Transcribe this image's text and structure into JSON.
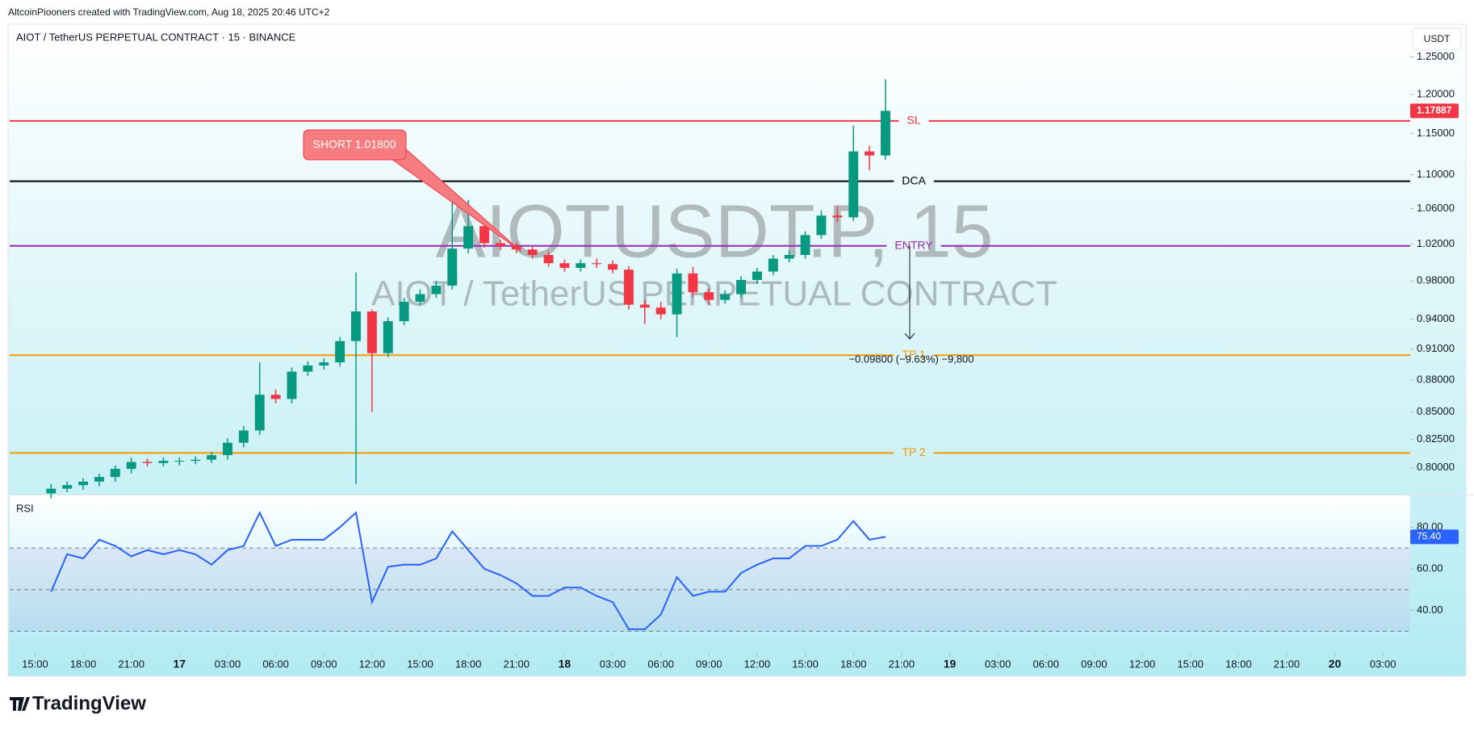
{
  "header": "AltcoinPiooners created with TradingView.com, Aug 18, 2025 20:46 UTC+2",
  "footer_logo": "TradingView",
  "chart_data": [
    {
      "type": "candlestick",
      "title": "AIOT / TetherUS PERPETUAL CONTRACT · 15 · BINANCE",
      "currency": "USDT",
      "watermark": {
        "symbol": "AIOTUSDT.P, 15",
        "description": "AIOT / TetherUS PERPETUAL CONTRACT"
      },
      "log_scale": true,
      "up_color": "#089981",
      "down_color": "#f23645",
      "xlim": [
        13.42,
        100.7
      ],
      "ylim": [
        0.777,
        1.294
      ],
      "yticks": [
        {
          "value": 1.25,
          "label": "1.25000"
        },
        {
          "value": 1.2,
          "label": "1.20000"
        },
        {
          "value": 1.15,
          "label": "1.15000"
        },
        {
          "value": 1.1,
          "label": "1.10000"
        },
        {
          "value": 1.06,
          "label": "1.06000"
        },
        {
          "value": 1.02,
          "label": "1.02000"
        },
        {
          "value": 0.98,
          "label": "0.98000"
        },
        {
          "value": 0.94,
          "label": "0.94000"
        },
        {
          "value": 0.91,
          "label": "0.91000"
        },
        {
          "value": 0.88,
          "label": "0.88000"
        },
        {
          "value": 0.85,
          "label": "0.85000"
        },
        {
          "value": 0.825,
          "label": "0.82500"
        },
        {
          "value": 0.8,
          "label": "0.80000"
        }
      ],
      "x": [
        16,
        17,
        18,
        19,
        20,
        21,
        22,
        23,
        24,
        25,
        26,
        27,
        28,
        29,
        30,
        31,
        32,
        33,
        34,
        35,
        36,
        37,
        38,
        39,
        40,
        41,
        42,
        43,
        44,
        45,
        46,
        47,
        48,
        49,
        50,
        51,
        52,
        53,
        54,
        55,
        56,
        57,
        58,
        59,
        60,
        61,
        62,
        63,
        64,
        65,
        66,
        67,
        68
      ],
      "open": [
        0.778,
        0.782,
        0.785,
        0.788,
        0.792,
        0.799,
        0.805,
        0.804,
        0.806,
        0.806,
        0.807,
        0.811,
        0.822,
        0.833,
        0.866,
        0.862,
        0.888,
        0.894,
        0.897,
        0.918,
        0.948,
        0.906,
        0.938,
        0.958,
        0.966,
        0.975,
        1.015,
        1.04,
        1.021,
        1.018,
        1.014,
        1.008,
        0.999,
        0.994,
        0.999,
        0.998,
        0.992,
        0.955,
        0.952,
        0.945,
        0.988,
        0.968,
        0.96,
        0.966,
        0.981,
        0.99,
        1.004,
        1.008,
        1.03,
        1.052,
        1.05,
        1.128,
        1.123
      ],
      "high": [
        0.786,
        0.788,
        0.791,
        0.795,
        0.802,
        0.809,
        0.808,
        0.809,
        0.809,
        0.81,
        0.814,
        0.826,
        0.837,
        0.897,
        0.871,
        0.892,
        0.898,
        0.901,
        0.922,
        0.989,
        0.95,
        0.942,
        0.962,
        0.971,
        0.98,
        1.068,
        1.07,
        1.044,
        1.025,
        1.022,
        1.018,
        1.012,
        1.003,
        1.003,
        1.004,
        1.002,
        0.996,
        0.96,
        0.958,
        0.993,
        0.995,
        0.972,
        0.97,
        0.985,
        0.994,
        1.008,
        1.013,
        1.034,
        1.058,
        1.063,
        1.16,
        1.135,
        1.22
      ],
      "low": [
        0.774,
        0.779,
        0.781,
        0.784,
        0.788,
        0.795,
        0.801,
        0.801,
        0.802,
        0.803,
        0.804,
        0.807,
        0.818,
        0.829,
        0.858,
        0.858,
        0.884,
        0.89,
        0.893,
        0.786,
        0.85,
        0.902,
        0.934,
        0.954,
        0.962,
        0.971,
        1.01,
        1.016,
        1.013,
        1.01,
        1.004,
        0.995,
        0.99,
        0.99,
        0.994,
        0.988,
        0.95,
        0.935,
        0.94,
        0.922,
        0.963,
        0.955,
        0.956,
        0.962,
        0.977,
        0.986,
        1.0,
        1.004,
        1.026,
        1.045,
        1.046,
        1.105,
        1.118
      ],
      "close": [
        0.782,
        0.785,
        0.788,
        0.792,
        0.799,
        0.805,
        0.804,
        0.806,
        0.806,
        0.807,
        0.811,
        0.822,
        0.833,
        0.866,
        0.862,
        0.888,
        0.894,
        0.897,
        0.918,
        0.948,
        0.906,
        0.938,
        0.958,
        0.966,
        0.975,
        1.015,
        1.04,
        1.021,
        1.018,
        1.014,
        1.008,
        0.999,
        0.994,
        0.999,
        0.998,
        0.992,
        0.955,
        0.952,
        0.945,
        0.988,
        0.968,
        0.96,
        0.966,
        0.981,
        0.99,
        1.004,
        1.008,
        1.03,
        1.052,
        1.05,
        1.128,
        1.123,
        1.17887
      ],
      "last_price": {
        "value": 1.17887,
        "label": "1.17887"
      },
      "levels": [
        {
          "name": "SL",
          "value": 1.166,
          "color": "#f23645"
        },
        {
          "name": "DCA",
          "value": 1.092,
          "color": "#000000"
        },
        {
          "name": "ENTRY",
          "value": 1.018,
          "color": "#9c27b0"
        },
        {
          "name": "TP 1",
          "value": 0.904,
          "color": "#ff9800"
        },
        {
          "name": "TP 2",
          "value": 0.813,
          "color": "#ff9800"
        }
      ],
      "callout": "SHORT 1.01800",
      "measure": {
        "from": 1.018,
        "to": 0.92,
        "label": "−0.09800 (−9.63%) −9,800"
      }
    },
    {
      "type": "line",
      "title": "RSI",
      "color": "#2962ff",
      "xlim": [
        13.42,
        100.7
      ],
      "ylim": [
        19.7,
        95.3
      ],
      "yticks": [
        {
          "value": 80,
          "label": "80.00"
        },
        {
          "value": 60,
          "label": "60.00"
        },
        {
          "value": 40,
          "label": "40.00"
        }
      ],
      "hlines": [
        70,
        50,
        30
      ],
      "x": [
        16,
        17,
        18,
        19,
        20,
        21,
        22,
        23,
        24,
        25,
        26,
        27,
        28,
        29,
        30,
        31,
        32,
        33,
        34,
        35,
        36,
        37,
        38,
        39,
        40,
        41,
        42,
        43,
        44,
        45,
        46,
        47,
        48,
        49,
        50,
        51,
        52,
        53,
        54,
        55,
        56,
        57,
        58,
        59,
        60,
        61,
        62,
        63,
        64,
        65,
        66,
        67,
        68
      ],
      "values": [
        49,
        67,
        65,
        74,
        71,
        66,
        69,
        67,
        69,
        67,
        62,
        69,
        71,
        87,
        71,
        74,
        74,
        74,
        80,
        87,
        44,
        61,
        62,
        62,
        65,
        78,
        69,
        60,
        57,
        53,
        47,
        47,
        51,
        51,
        47,
        44,
        31,
        31,
        38,
        56,
        47,
        49,
        49,
        58,
        62,
        65,
        65,
        71,
        71,
        74,
        83,
        74,
        75.4
      ],
      "last_value": {
        "value": 75.4,
        "label": "75.40"
      },
      "xticks": [
        {
          "value": 15,
          "label": "15:00"
        },
        {
          "value": 18,
          "label": "18:00"
        },
        {
          "value": 21,
          "label": "21:00"
        },
        {
          "value": 24,
          "label": "17"
        },
        {
          "value": 27,
          "label": "03:00"
        },
        {
          "value": 30,
          "label": "06:00"
        },
        {
          "value": 33,
          "label": "09:00"
        },
        {
          "value": 36,
          "label": "12:00"
        },
        {
          "value": 39,
          "label": "15:00"
        },
        {
          "value": 42,
          "label": "18:00"
        },
        {
          "value": 45,
          "label": "21:00"
        },
        {
          "value": 48,
          "label": "18"
        },
        {
          "value": 51,
          "label": "03:00"
        },
        {
          "value": 54,
          "label": "06:00"
        },
        {
          "value": 57,
          "label": "09:00"
        },
        {
          "value": 60,
          "label": "12:00"
        },
        {
          "value": 63,
          "label": "15:00"
        },
        {
          "value": 66,
          "label": "18:00"
        },
        {
          "value": 69,
          "label": "21:00"
        },
        {
          "value": 72,
          "label": "19"
        },
        {
          "value": 75,
          "label": "03:00"
        },
        {
          "value": 78,
          "label": "06:00"
        },
        {
          "value": 81,
          "label": "09:00"
        },
        {
          "value": 84,
          "label": "12:00"
        },
        {
          "value": 87,
          "label": "15:00"
        },
        {
          "value": 90,
          "label": "18:00"
        },
        {
          "value": 93,
          "label": "21:00"
        },
        {
          "value": 96,
          "label": "20"
        },
        {
          "value": 99,
          "label": "03:00"
        }
      ]
    }
  ]
}
